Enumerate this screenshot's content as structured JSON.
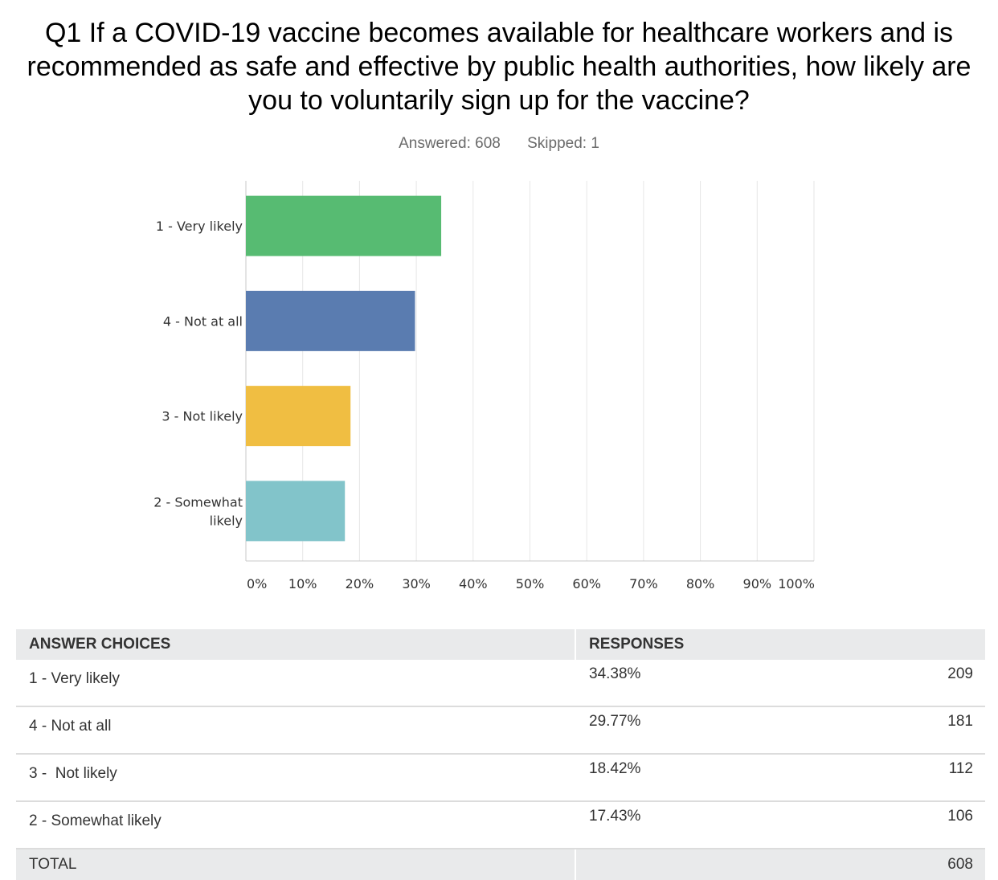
{
  "title": "Q1 If a COVID-19 vaccine becomes available for healthcare workers and is recommended as safe and effective by public health authorities, how likely are you to voluntarily sign up for the vaccine?",
  "answered": "Answered: 608",
  "skipped": "Skipped: 1",
  "chart_data": {
    "type": "bar",
    "orientation": "horizontal",
    "categories": [
      "1 - Very likely",
      "4 - Not at all",
      "3 -  Not likely",
      "2 - Somewhat likely"
    ],
    "category_lines": [
      [
        "1 - Very likely"
      ],
      [
        "4 - Not at all"
      ],
      [
        "3 -  Not likely"
      ],
      [
        "2 - Somewhat",
        "likely"
      ]
    ],
    "values": [
      34.38,
      29.77,
      18.42,
      17.43
    ],
    "colors": [
      "#57bb72",
      "#5a7cb0",
      "#f0be42",
      "#82c4ca"
    ],
    "xlim": [
      0,
      100
    ],
    "xticks": [
      "0%",
      "10%",
      "20%",
      "30%",
      "40%",
      "50%",
      "60%",
      "70%",
      "80%",
      "90%",
      "100%"
    ],
    "grid": true
  },
  "table": {
    "headers": [
      "ANSWER CHOICES",
      "RESPONSES"
    ],
    "rows": [
      {
        "choice": "1 - Very likely",
        "percent": "34.38%",
        "count": "209"
      },
      {
        "choice": "4 - Not at all",
        "percent": "29.77%",
        "count": "181"
      },
      {
        "choice": "3 -  Not likely",
        "percent": "18.42%",
        "count": "112"
      },
      {
        "choice": "2 - Somewhat likely",
        "percent": "17.43%",
        "count": "106"
      }
    ],
    "total_label": "TOTAL",
    "total_count": "608"
  }
}
